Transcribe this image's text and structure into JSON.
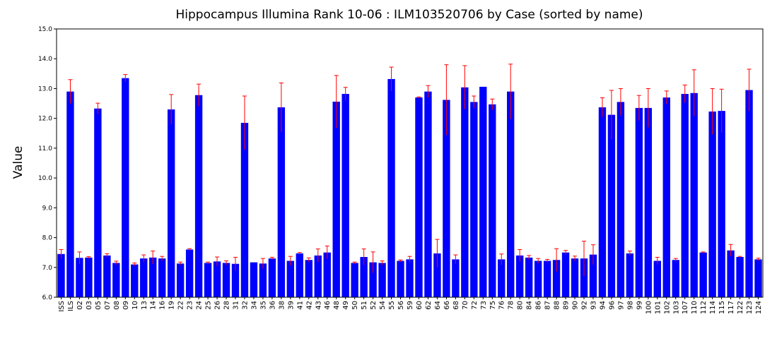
{
  "chart_data": {
    "type": "bar",
    "title": "Hippocampus Illumina Rank 10-06 : ILM103520706 by Case (sorted by name)",
    "xlabel": "",
    "ylabel": "Value",
    "ylim": [
      6.0,
      15.0
    ],
    "yticks": [
      "6.0",
      "7.0",
      "8.0",
      "9.0",
      "10.0",
      "11.0",
      "12.0",
      "13.0",
      "14.0",
      "15.0"
    ],
    "grid": false,
    "legend": "none",
    "bar_color": "#0000ff",
    "error_color": "#ff0000",
    "categories": [
      "ISS",
      "ILS",
      "02",
      "03",
      "05",
      "07",
      "08",
      "09",
      "10",
      "13",
      "14",
      "16",
      "19",
      "22",
      "23",
      "24",
      "25",
      "26",
      "28",
      "31",
      "32",
      "34",
      "35",
      "36",
      "38",
      "39",
      "41",
      "42",
      "43",
      "46",
      "48",
      "49",
      "50",
      "51",
      "52",
      "54",
      "55",
      "56",
      "59",
      "60",
      "62",
      "64",
      "66",
      "68",
      "70",
      "72",
      "73",
      "75",
      "76",
      "78",
      "80",
      "84",
      "86",
      "87",
      "88",
      "89",
      "90",
      "92",
      "93",
      "94",
      "96",
      "97",
      "98",
      "99",
      "100",
      "101",
      "102",
      "103",
      "107",
      "110",
      "112",
      "114",
      "115",
      "117",
      "122",
      "123",
      "124"
    ],
    "values": [
      7.45,
      12.9,
      7.32,
      7.33,
      12.33,
      7.4,
      7.15,
      13.35,
      7.1,
      7.3,
      7.33,
      7.3,
      12.3,
      7.13,
      7.6,
      12.78,
      7.15,
      7.2,
      7.15,
      7.12,
      11.85,
      7.17,
      7.13,
      7.3,
      12.37,
      7.22,
      7.47,
      7.25,
      7.4,
      7.5,
      12.56,
      12.82,
      7.15,
      7.35,
      7.17,
      7.15,
      13.32,
      7.22,
      7.27,
      12.7,
      12.9,
      7.47,
      12.62,
      7.27,
      13.04,
      12.55,
      13.06,
      12.47,
      7.27,
      12.9,
      7.4,
      7.33,
      7.22,
      7.22,
      7.25,
      7.5,
      7.3,
      7.3,
      7.43,
      12.37,
      12.12,
      12.55,
      7.47,
      12.35,
      12.35,
      7.22,
      12.7,
      7.25,
      12.82,
      12.85,
      7.5,
      12.23,
      12.25,
      7.57,
      7.35,
      12.95,
      7.27
    ],
    "errors": [
      0.15,
      0.4,
      0.2,
      0.03,
      0.18,
      0.06,
      0.06,
      0.12,
      0.05,
      0.12,
      0.22,
      0.07,
      0.5,
      0.05,
      0.03,
      0.37,
      0.03,
      0.15,
      0.07,
      0.22,
      0.9,
      0.0,
      0.17,
      0.04,
      0.82,
      0.15,
      0.03,
      0.07,
      0.22,
      0.22,
      0.88,
      0.22,
      0.03,
      0.27,
      0.35,
      0.07,
      0.4,
      0.03,
      0.1,
      0.02,
      0.2,
      0.47,
      1.18,
      0.15,
      0.73,
      0.2,
      0.0,
      0.18,
      0.18,
      0.92,
      0.2,
      0.07,
      0.08,
      0.05,
      0.38,
      0.07,
      0.08,
      0.58,
      0.33,
      0.32,
      0.82,
      0.45,
      0.08,
      0.42,
      0.65,
      0.12,
      0.22,
      0.05,
      0.3,
      0.78,
      0.02,
      0.77,
      0.73,
      0.2,
      0.02,
      0.7,
      0.04
    ]
  }
}
